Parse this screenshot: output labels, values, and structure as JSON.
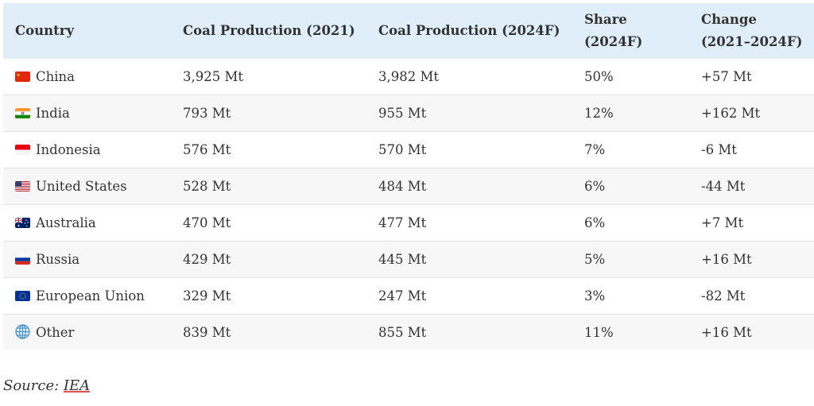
{
  "table": {
    "headers": {
      "country": "Country",
      "prod2021": "Coal Production (2021)",
      "prod2024": "Coal Production (2024F)",
      "share": "Share (2024F)",
      "change": "Change (2021–2024F)"
    },
    "rows": [
      {
        "flag": "china-flag-icon",
        "country": "China",
        "prod2021": "3,925 Mt",
        "prod2024": "3,982 Mt",
        "share": "50%",
        "change": "+57 Mt"
      },
      {
        "flag": "india-flag-icon",
        "country": "India",
        "prod2021": "793 Mt",
        "prod2024": "955 Mt",
        "share": "12%",
        "change": "+162 Mt"
      },
      {
        "flag": "indonesia-flag-icon",
        "country": "Indonesia",
        "prod2021": "576 Mt",
        "prod2024": "570 Mt",
        "share": "7%",
        "change": "-6 Mt"
      },
      {
        "flag": "usa-flag-icon",
        "country": "United States",
        "prod2021": "528 Mt",
        "prod2024": "484 Mt",
        "share": "6%",
        "change": "-44 Mt"
      },
      {
        "flag": "australia-flag-icon",
        "country": "Australia",
        "prod2021": "470 Mt",
        "prod2024": "477 Mt",
        "share": "6%",
        "change": "+7 Mt"
      },
      {
        "flag": "russia-flag-icon",
        "country": "Russia",
        "prod2021": "429 Mt",
        "prod2024": "445 Mt",
        "share": "5%",
        "change": "+16 Mt"
      },
      {
        "flag": "eu-flag-icon",
        "country": "European Union",
        "prod2021": "329 Mt",
        "prod2024": "247 Mt",
        "share": "3%",
        "change": "-82 Mt"
      },
      {
        "flag": "globe-icon",
        "country": "Other",
        "prod2021": "839 Mt",
        "prod2024": "855 Mt",
        "share": "11%",
        "change": "+16 Mt"
      }
    ]
  },
  "source": {
    "prefix": "Source: ",
    "link_text": "IEA"
  },
  "colors": {
    "header_bg": "#dfeef8",
    "row_alt_bg": "#f7f7f7",
    "text": "#333333"
  }
}
